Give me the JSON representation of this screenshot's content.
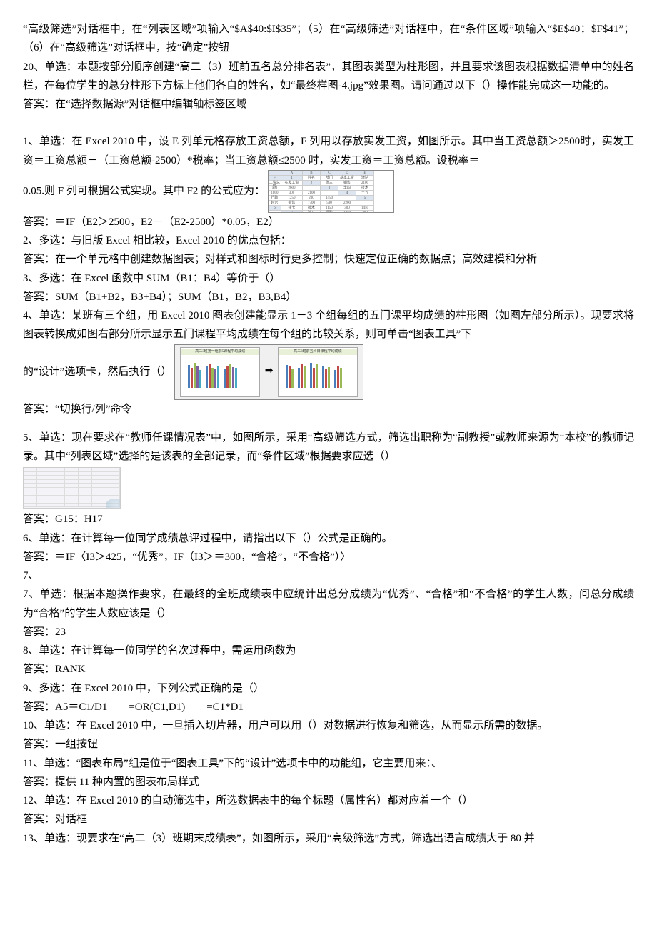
{
  "top": {
    "p1": "“高级筛选”对话框中，在“列表区域”项输入“$A$40:$I$35”；（5）在“高级筛选”对话框中，在“条件区域”项输入“$E$40：$F$41”；（6）在“高级筛选”对话框中，按“确定”按钮",
    "p2": "20、单选：本题按部分顺序创建“高二（3）班前五名总分排名表”，其图表类型为柱形图，并且要求该图表根据数据清单中的姓名栏，在每位学生的总分柱形下方标上他们各自的姓名，如“最终样图-4.jpg”效果图。请问通过以下（）操作能完成这一功能的。",
    "p3": "答案：在“选择数据源”对话框中编辑轴标签区域"
  },
  "q1": {
    "line1_a": "1、单选：在 Excel 2010 中，设 E 列单元格存放工资总额，F 列用以存放实发工资，如图所示。其中当工资总额＞2500时，实发工资＝工资总额－（工资总额-2500）*税率；当工资总额≤2500 时，实发工资＝工资总额。设税率＝",
    "line2_a": "0.05.则 F 列可根据公式实现。其中 F2 的公式应为：",
    "ans": "答案：＝IF（E2＞2500，E2－（E2-2500）*0.05，E2）"
  },
  "q2": {
    "q": "2、多选：与旧版 Excel 相比较，Excel 2010 的优点包括：",
    "ans": "答案：在一个单元格中创建数据图表；对样式和图标时行更多控制；快速定位正确的数据点；高效建模和分析"
  },
  "q3": {
    "q": "3、多选：在 Excel 函数中 SUM（B1：B4）等价于（）",
    "ans": "答案：SUM（B1+B2，B3+B4）；SUM（B1，B2，B3,B4）"
  },
  "q4": {
    "line1": "4、单选：某班有三个组，用 Excel 2010 图表创建能显示 1－3 个组每组的五门课平均成绩的柱形图（如图左部分所示）。现要求将图表转换成如图右部分所示显示五门课程平均成绩在每个组的比较关系，则可单击“图表工具”下",
    "line2": "的“设计”选项卡，然后执行（）",
    "ans": "答案：“切换行/列”命令"
  },
  "q5": {
    "line1": "5、单选：现在要求在“教师任课情况表”中，如图所示，采用“高级筛选方式，筛选出职称为“副教授”或教师来源为“本校”的教师记录。其中“列表区域”选择的是该表的全部记录，而“条件区域”根据要求应选（）",
    "ans": "答案：G15：H17"
  },
  "q6": {
    "q": "6、单选：在计算每一位同学成绩总评过程中，请指出以下（）公式是正确的。",
    "ans": "答案：＝IF〈I3＞425，“优秀”，IF（I3＞＝300，“合格”，“不合格”）〉"
  },
  "q7": {
    "pre": "7、",
    "q": "7、单选：根据本题操作要求，在最终的全班成绩表中应统计出总分成绩为“优秀”、“合格”和“不合格”的学生人数，问总分成绩为“合格”的学生人数应该是（）",
    "ans": "答案：23"
  },
  "q8": {
    "q": "8、单选：在计算每一位同学的名次过程中，需运用函数为",
    "ans": "答案：RANK"
  },
  "q9": {
    "q": "9、多选：在 Excel 2010 中，下列公式正确的是（）",
    "ans": "答案：A5＝C1/D1  =OR(C1,D1)  =C1*D1"
  },
  "q10": {
    "q": "10、单选：在 Excel 2010 中，一旦插入切片器，用户可以用（）对数据进行恢复和筛选，从而显示所需的数据。",
    "ans": "答案：一组按钮"
  },
  "q11": {
    "q": "11、单选：“图表布局”组是位于“图表工具”下的“设计”选项卡中的功能组，它主要用来：、",
    "ans": "答案：提供 11 种内置的图表布局样式"
  },
  "q12": {
    "q": "12、单选：在 Excel 2010 的自动筛选中，所选数据表中的每个标题（属性名）都对应着一个（）",
    "ans": "答案：对话框"
  },
  "q13": {
    "q": "13、单选：现要求在“高二（3）班期末成绩表”，如图所示，采用“高级筛选”方式，筛选出语言成绩大于 80 并"
  },
  "img_salary": {
    "headers": [
      "",
      "A",
      "B",
      "C",
      "D",
      "E",
      "F"
    ],
    "rows": [
      [
        "1",
        "姓名",
        "部门",
        "基本工资",
        "津贴",
        "工资总额",
        "实发工资"
      ],
      [
        "2",
        "张三",
        "销售",
        "2100",
        "500",
        "2600",
        ""
      ],
      [
        "3",
        "李四",
        "技术",
        "1800",
        "300",
        "2100",
        ""
      ],
      [
        "4",
        "王五",
        "行政",
        "1250",
        "200",
        "1450",
        ""
      ],
      [
        "5",
        "赵六",
        "销售",
        "1700",
        "500",
        "2200",
        ""
      ],
      [
        "6",
        "钱七",
        "技术",
        "1150",
        "300",
        "1450",
        ""
      ],
      [
        "7",
        "孙八",
        "行政",
        "1250",
        "200",
        "1450",
        ""
      ]
    ]
  },
  "img_charts": {
    "left_title": "高二3班第一组前5课程平均成绩",
    "right_title": "高二3班前五科目课程平均成绩",
    "bar_colors": [
      "#4a7ebb",
      "#be4b48",
      "#98b954",
      "#7d60a0",
      "#46aac5"
    ],
    "left_heights": [
      [
        32,
        28,
        35,
        30,
        25
      ],
      [
        30,
        34,
        28,
        26,
        31
      ],
      [
        27,
        30,
        33,
        29,
        28
      ]
    ],
    "right_heights": [
      [
        32,
        30,
        27
      ],
      [
        28,
        34,
        30
      ],
      [
        35,
        28,
        33
      ],
      [
        30,
        26,
        29
      ],
      [
        25,
        31,
        28
      ]
    ]
  }
}
